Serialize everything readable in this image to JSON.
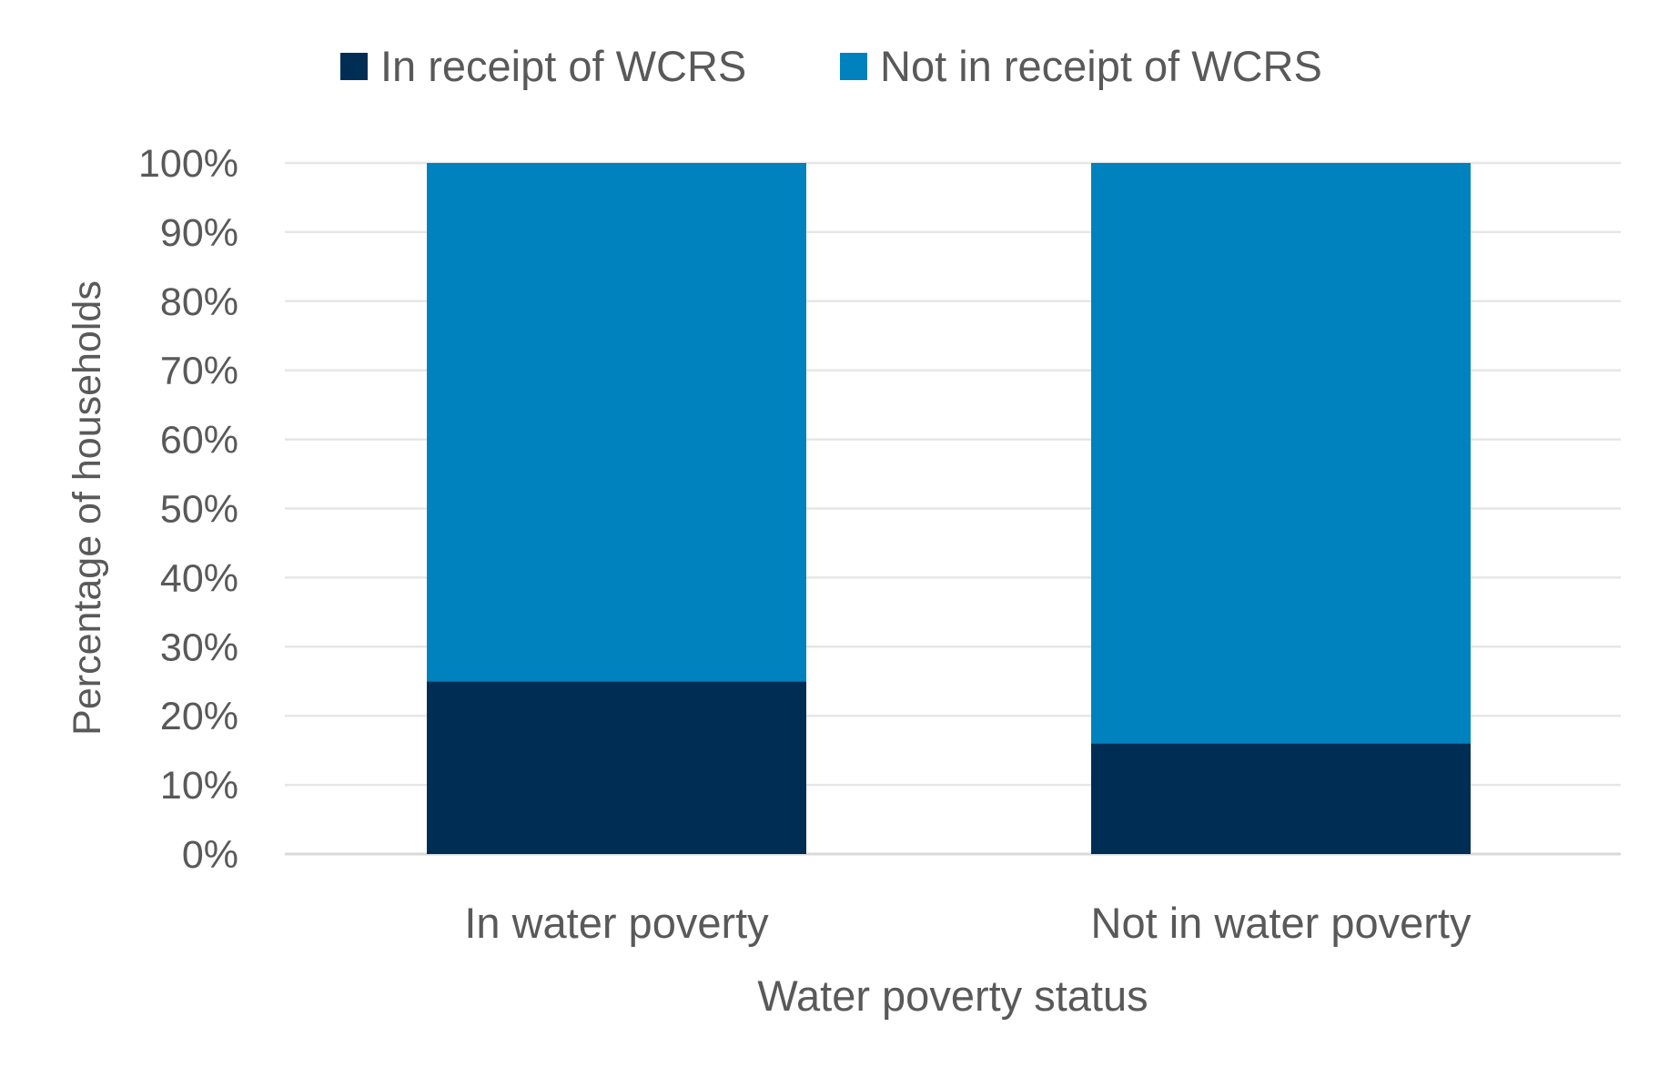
{
  "chart_data": {
    "type": "bar",
    "stacked": true,
    "title": "",
    "xlabel": "Water poverty status",
    "ylabel": "Percentage of households",
    "categories": [
      "In water poverty",
      "Not in water poverty"
    ],
    "series": [
      {
        "name": "In receipt of WCRS",
        "values": [
          25,
          16
        ],
        "color": "#002D53"
      },
      {
        "name": "Not in receipt of WCRS",
        "values": [
          75,
          84
        ],
        "color": "#0082BE"
      }
    ],
    "ylim": [
      0,
      100
    ],
    "yticks": [
      "0%",
      "10%",
      "20%",
      "30%",
      "40%",
      "50%",
      "60%",
      "70%",
      "80%",
      "90%",
      "100%"
    ],
    "grid": true,
    "legend_position": "top"
  }
}
